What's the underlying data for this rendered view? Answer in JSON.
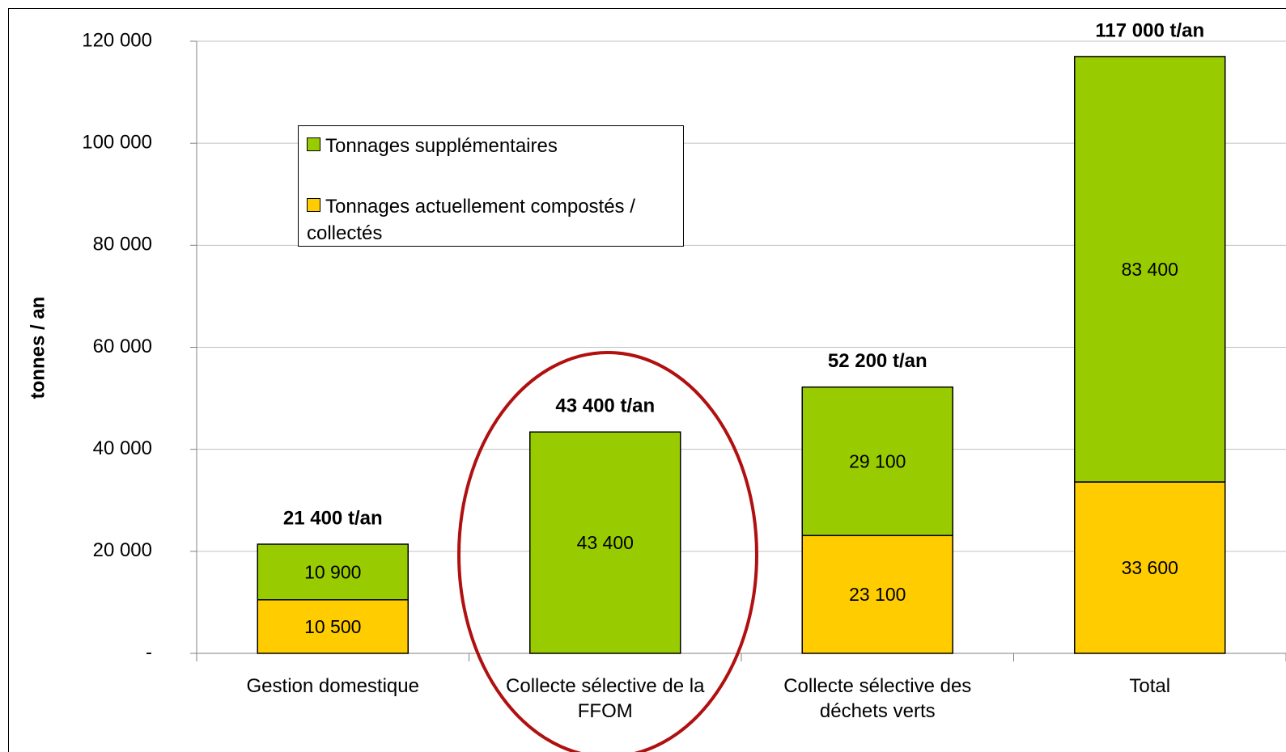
{
  "chart_data": {
    "type": "stacked_bar",
    "ylabel": "tonnes / an",
    "categories": [
      "Gestion domestique",
      "Collecte sélective de la FFOM",
      "Collecte sélective des déchets verts",
      "Total"
    ],
    "series": [
      {
        "name": "Tonnages actuellement compostés / collectés",
        "color": "#ffcc00",
        "values": [
          10500,
          null,
          23100,
          33600
        ],
        "value_labels": [
          "10 500",
          null,
          "23 100",
          "33 600"
        ]
      },
      {
        "name": "Tonnages supplémentaires",
        "color": "#99cc00",
        "values": [
          10900,
          43400,
          29100,
          83400
        ],
        "value_labels": [
          "10 900",
          "43 400",
          "29 100",
          "83 400"
        ]
      }
    ],
    "totals": {
      "values": [
        21400,
        43400,
        52200,
        117000
      ],
      "value_labels": [
        "21 400 t/an",
        "43 400 t/an",
        "52 200 t/an",
        "117 000 t/an"
      ]
    },
    "ylim": [
      0,
      120000
    ],
    "yticks": [
      {
        "value": 0,
        "label": "-"
      },
      {
        "value": 20000,
        "label": "20 000"
      },
      {
        "value": 40000,
        "label": "40 000"
      },
      {
        "value": 60000,
        "label": "60 000"
      },
      {
        "value": 80000,
        "label": "80 000"
      },
      {
        "value": 100000,
        "label": "100 000"
      },
      {
        "value": 120000,
        "label": "120 000"
      }
    ],
    "grid": true
  }
}
